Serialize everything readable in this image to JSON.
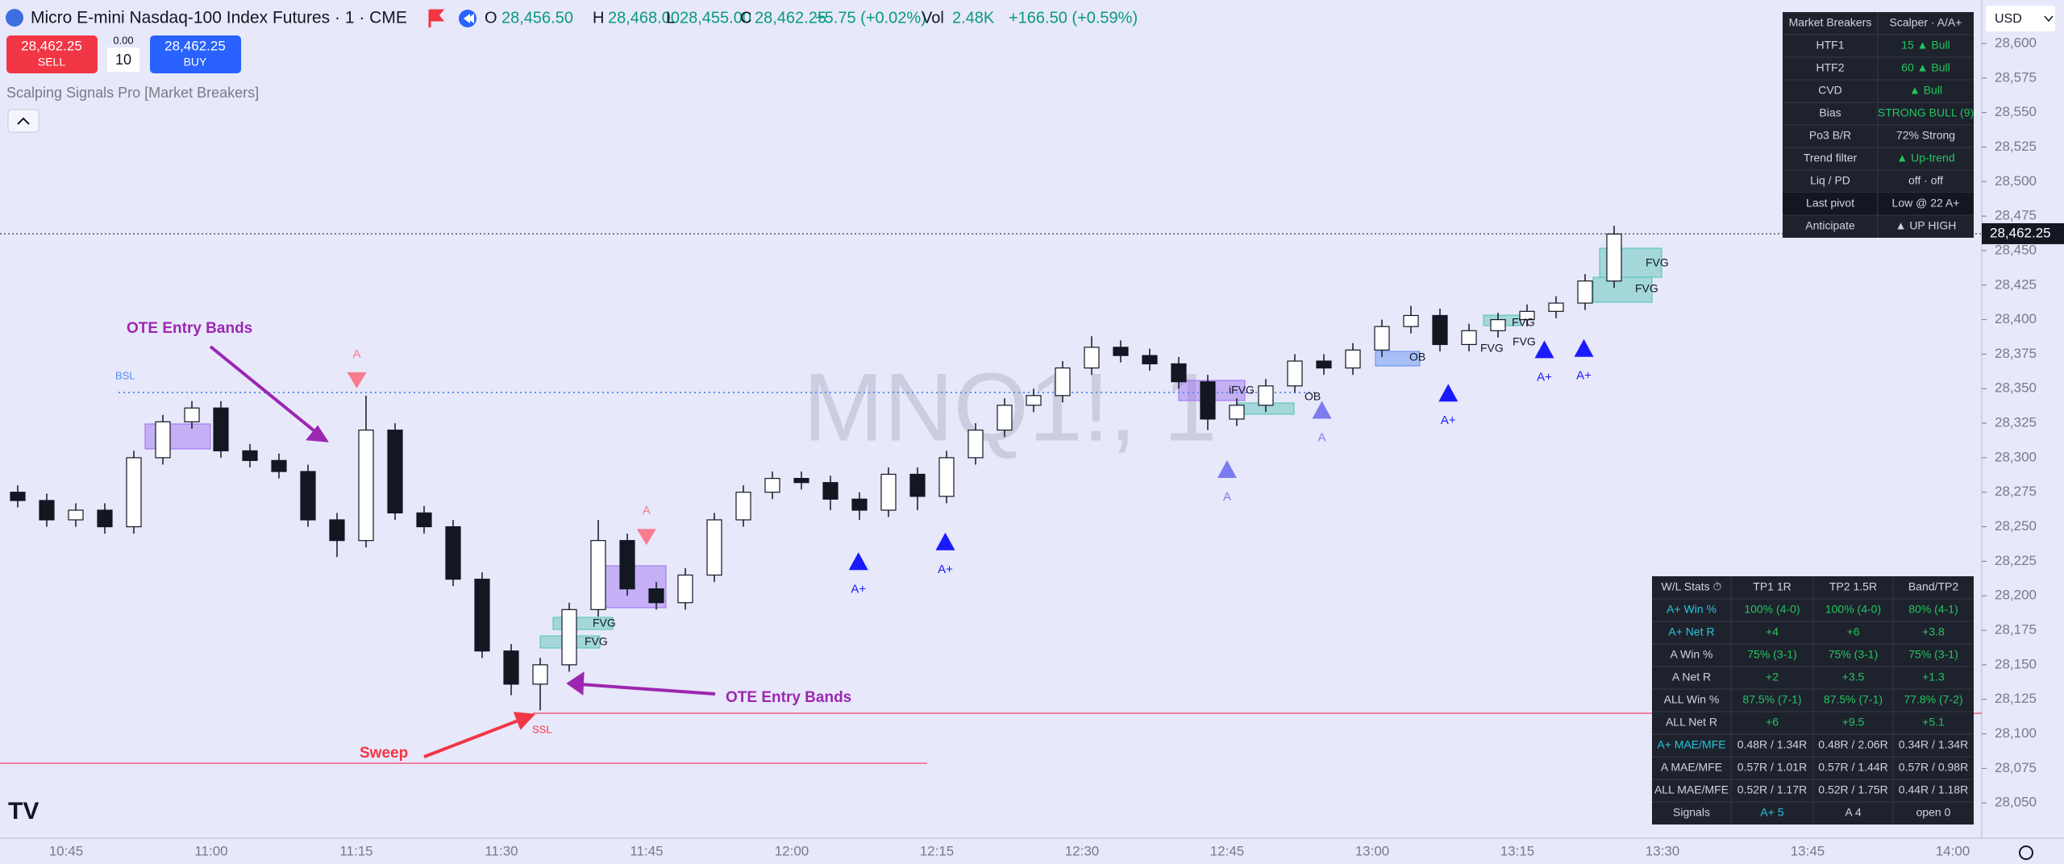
{
  "header": {
    "title": "Micro E-mini Nasdaq-100 Index Futures · 1 · CME",
    "ohlc": [
      {
        "key": "O",
        "value": "28,456.50"
      },
      {
        "key": "H",
        "value": "28,468.00"
      },
      {
        "key": "L",
        "value": "28,455.00"
      },
      {
        "key": "C",
        "value": "28,462.25"
      }
    ],
    "change": "+5.75 (+0.02%)",
    "vol_key": "Vol",
    "vol": "2.48K",
    "vol_change": "+166.50 (+0.59%)"
  },
  "trade": {
    "sell_price": "28,462.25",
    "sell": "SELL",
    "spread": "0.00",
    "qty": "10",
    "buy_price": "28,462.25",
    "buy": "BUY"
  },
  "indicator": "Scalping Signals Pro [Market Breakers]",
  "watermark": "MNQ1!, 1",
  "currency": "USD",
  "price_axis": {
    "ticks": [
      {
        "value": 28050,
        "label": "28,050"
      },
      {
        "value": 28075,
        "label": "28,075"
      },
      {
        "value": 28100,
        "label": "28,100"
      },
      {
        "value": 28125,
        "label": "28,125"
      },
      {
        "value": 28150,
        "label": "28,150"
      },
      {
        "value": 28175,
        "label": "28,175"
      },
      {
        "value": 28200,
        "label": "28,200"
      },
      {
        "value": 28225,
        "label": "28,225"
      },
      {
        "value": 28250,
        "label": "28,250"
      },
      {
        "value": 28275,
        "label": "28,275"
      },
      {
        "value": 28300,
        "label": "28,300"
      },
      {
        "value": 28325,
        "label": "28,325"
      },
      {
        "value": 28350,
        "label": "28,350"
      },
      {
        "value": 28375,
        "label": "28,375"
      },
      {
        "value": 28400,
        "label": "28,400"
      },
      {
        "value": 28425,
        "label": "28,425"
      },
      {
        "value": 28450,
        "label": "28,450"
      },
      {
        "value": 28475,
        "label": "28,475"
      },
      {
        "value": 28500,
        "label": "28,500"
      },
      {
        "value": 28525,
        "label": "28,525"
      },
      {
        "value": 28550,
        "label": "28,550"
      },
      {
        "value": 28575,
        "label": "28,575"
      },
      {
        "value": 28600,
        "label": "28,600"
      }
    ],
    "last": {
      "value": 28462.25,
      "label": "28,462.25"
    }
  },
  "time_axis": [
    "10:45",
    "11:00",
    "11:15",
    "11:30",
    "11:45",
    "12:00",
    "12:15",
    "12:30",
    "12:45",
    "13:00",
    "13:15",
    "13:30",
    "13:45",
    "14:00"
  ],
  "candles": {
    "x": [
      "10:40",
      "10:43",
      "10:46",
      "10:49",
      "10:52",
      "10:55",
      "10:58",
      "11:01",
      "11:04",
      "11:07",
      "11:10",
      "11:13",
      "11:16",
      "11:19",
      "11:22",
      "11:25",
      "11:28",
      "11:31",
      "11:34",
      "11:37",
      "11:40",
      "11:43",
      "11:46",
      "11:49",
      "11:52",
      "11:55",
      "11:58",
      "12:01",
      "12:04",
      "12:07",
      "12:10",
      "12:13",
      "12:16",
      "12:19",
      "12:22",
      "12:25",
      "12:28",
      "12:31",
      "12:34",
      "12:37",
      "12:40",
      "12:43",
      "12:46",
      "12:49",
      "12:52",
      "12:55",
      "12:58",
      "13:01",
      "13:04",
      "13:07",
      "13:10",
      "13:13",
      "13:16",
      "13:19",
      "13:22",
      "13:25"
    ],
    "open": [
      28275,
      28269,
      28255,
      28262,
      28250,
      28300,
      28326,
      28336,
      28305,
      28298,
      28290,
      28255,
      28240,
      28320,
      28260,
      28250,
      28212,
      28160,
      28136,
      28150,
      28190,
      28240,
      28205,
      28195,
      28215,
      28255,
      28275,
      28285,
      28282,
      28270,
      28262,
      28288,
      28272,
      28300,
      28320,
      28338,
      28345,
      28365,
      28380,
      28374,
      28368,
      28355,
      28328,
      28338,
      28352,
      28370,
      28365,
      28378,
      28395,
      28403,
      28382,
      28392,
      28400,
      28406,
      28412,
      28428
    ],
    "high": [
      28280,
      28274,
      28267,
      28267,
      28305,
      28331,
      28341,
      28341,
      28310,
      28303,
      28295,
      28260,
      28345,
      28325,
      28265,
      28255,
      28217,
      28165,
      28155,
      28195,
      28255,
      28245,
      28210,
      28220,
      28260,
      28280,
      28290,
      28290,
      28287,
      28275,
      28293,
      28293,
      28305,
      28325,
      28343,
      28350,
      28370,
      28388,
      28385,
      28379,
      28373,
      28360,
      28343,
      28357,
      28375,
      28375,
      28383,
      28400,
      28410,
      28408,
      28397,
      28405,
      28411,
      28417,
      28433,
      28468
    ],
    "low": [
      28264,
      28250,
      28250,
      28245,
      28245,
      28295,
      28321,
      28300,
      28293,
      28285,
      28250,
      28228,
      28235,
      28255,
      28245,
      28207,
      28155,
      28128,
      28117,
      28145,
      28185,
      28200,
      28190,
      28190,
      28210,
      28250,
      28270,
      28277,
      28262,
      28255,
      28257,
      28262,
      28267,
      28295,
      28315,
      28333,
      28340,
      28360,
      28369,
      28363,
      28350,
      28320,
      28323,
      28333,
      28347,
      28360,
      28360,
      28373,
      28390,
      28377,
      28377,
      28387,
      28395,
      28401,
      28407,
      28423
    ],
    "close": [
      28269,
      28255,
      28262,
      28250,
      28300,
      28326,
      28336,
      28305,
      28298,
      28290,
      28255,
      28240,
      28320,
      28260,
      28250,
      28212,
      28160,
      28136,
      28150,
      28190,
      28240,
      28205,
      28195,
      28215,
      28255,
      28275,
      28285,
      28282,
      28270,
      28262,
      28288,
      28272,
      28300,
      28320,
      28338,
      28345,
      28365,
      28380,
      28374,
      28368,
      28355,
      28328,
      28338,
      28352,
      28370,
      28365,
      28378,
      28395,
      28403,
      28382,
      28392,
      28400,
      28406,
      28412,
      28428,
      28462
    ]
  },
  "annotations": {
    "ote_1": "OTE Entry Bands",
    "ote_2": "OTE Entry Bands",
    "sweep": "Sweep",
    "bsl": "BSL",
    "ssl": "SSL",
    "zones": [
      "FVG",
      "FVG",
      "FVG",
      "FVG",
      "FVG",
      "FVG",
      "FVG",
      "iFVG",
      "OB",
      "OB"
    ]
  },
  "signals": [
    "A",
    "A",
    "A+",
    "A+",
    "A",
    "A",
    "A+",
    "A+",
    "A+"
  ],
  "market_table": {
    "header": [
      "Market Breakers",
      "Scalper · A/A+"
    ],
    "rows": [
      [
        "HTF1",
        "15  ▲ Bull"
      ],
      [
        "HTF2",
        "60  ▲ Bull"
      ],
      [
        "CVD",
        "▲ Bull"
      ],
      [
        "Bias",
        "STRONG BULL (9)"
      ],
      [
        "Po3 B/R",
        "72%  Strong"
      ],
      [
        "Trend filter",
        "▲ Up-trend"
      ],
      [
        "Liq / PD",
        "off · off"
      ],
      [
        "Last pivot",
        "Low @ 22  A+"
      ],
      [
        "Anticipate",
        "▲ UP  HIGH"
      ]
    ]
  },
  "stats_table": {
    "header": [
      "W/L Stats ⏱",
      "TP1 1R",
      "TP2 1.5R",
      "Band/TP2"
    ],
    "rows": [
      [
        "A+ Win %",
        "100% (4-0)",
        "100% (4-0)",
        "80% (4-1)"
      ],
      [
        "A+ Net R",
        "+4",
        "+6",
        "+3.8"
      ],
      [
        "A Win %",
        "75% (3-1)",
        "75% (3-1)",
        "75% (3-1)"
      ],
      [
        "A Net R",
        "+2",
        "+3.5",
        "+1.3"
      ],
      [
        "ALL Win %",
        "87.5% (7-1)",
        "87.5% (7-1)",
        "77.8% (7-2)"
      ],
      [
        "ALL Net R",
        "+6",
        "+9.5",
        "+5.1"
      ],
      [
        "A+ MAE/MFE",
        "0.48R / 1.34R",
        "0.48R / 2.06R",
        "0.34R / 1.34R"
      ],
      [
        "A MAE/MFE",
        "0.57R / 1.01R",
        "0.57R / 1.44R",
        "0.57R / 0.98R"
      ],
      [
        "ALL MAE/MFE",
        "0.52R / 1.17R",
        "0.52R / 1.75R",
        "0.44R / 1.18R"
      ],
      [
        "Signals",
        "A+ 5",
        "A 4",
        "open 0"
      ]
    ]
  }
}
